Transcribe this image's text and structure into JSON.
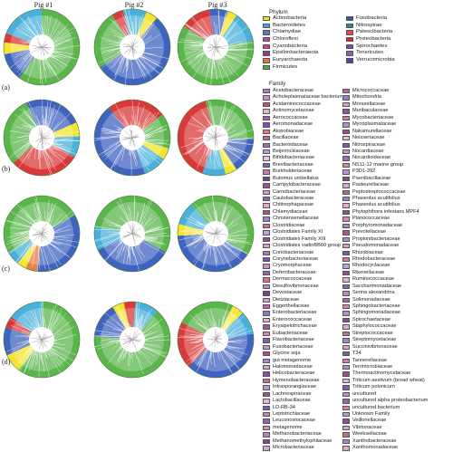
{
  "columns": [
    "Pig #1",
    "Pig #2",
    "Pig #3"
  ],
  "rows": [
    "(a)",
    "(b)",
    "(c)",
    "(d)"
  ],
  "phylum": {
    "title": "Phylum",
    "items": [
      {
        "label": "Actinobacteria",
        "color": "#f2e21c"
      },
      {
        "label": "Bacteroidetes",
        "color": "#3aa9d8"
      },
      {
        "label": "Chlamydiae",
        "color": "#6a6fc2"
      },
      {
        "label": "Chloroflexi",
        "color": "#b24aa8"
      },
      {
        "label": "Cyanobacteria",
        "color": "#d63b8f"
      },
      {
        "label": "Epsilonbacteraeota",
        "color": "#8a3b9c"
      },
      {
        "label": "Euryarchaeota",
        "color": "#e3733a"
      },
      {
        "label": "Firmicutes",
        "color": "#4caf3c"
      },
      {
        "label": "Fusobacteria",
        "color": "#2f56b8"
      },
      {
        "label": "Nitrospirae",
        "color": "#2c8a8a"
      },
      {
        "label": "Patescibacteria",
        "color": "#e24a4a"
      },
      {
        "label": "Proteobacteria",
        "color": "#d62828"
      },
      {
        "label": "Spirochaetes",
        "color": "#7a4bb5"
      },
      {
        "label": "Tenericutes",
        "color": "#9b59b6"
      },
      {
        "label": "Verrucomicrobia",
        "color": "#5b3fa8"
      }
    ]
  },
  "family": {
    "title": "Family",
    "col1": [
      {
        "label": "Acetobacteraceae",
        "color": "#b67bc7"
      },
      {
        "label": "Acholeplasmataceae bacterium",
        "color": "#d98ad6"
      },
      {
        "label": "Acidaminococcaceae",
        "color": "#c94f7c"
      },
      {
        "label": "Actinomycetaceae",
        "color": "#e8b8d8"
      },
      {
        "label": "Aerococcaceae",
        "color": "#a55fb8"
      },
      {
        "label": "Aeromonadaceae",
        "color": "#7e4fb5"
      },
      {
        "label": "Atopobiaceae",
        "color": "#e07a9b"
      },
      {
        "label": "Bacillaceae",
        "color": "#cf5f88"
      },
      {
        "label": "Bacteroidaceae",
        "color": "#9d6fc4"
      },
      {
        "label": "Beijerinckiaceae",
        "color": "#b8a0da"
      },
      {
        "label": "Bifidobacteriaceae",
        "color": "#f0c2e0"
      },
      {
        "label": "Brevibacteriaceae",
        "color": "#8b5db8"
      },
      {
        "label": "Burkholderiaceae",
        "color": "#c978b9"
      },
      {
        "label": "Butomus umbellatus",
        "color": "#6c3fa0"
      },
      {
        "label": "Campylobacteraceae",
        "color": "#a14d9e"
      },
      {
        "label": "Carnobacteriaceae",
        "color": "#dc9ac9"
      },
      {
        "label": "Caulobacteraceae",
        "color": "#7f66c2"
      },
      {
        "label": "Chitinophagaceae",
        "color": "#e4a6c0"
      },
      {
        "label": "Chlamydiaceae",
        "color": "#b14f94"
      },
      {
        "label": "Christensenellaceae",
        "color": "#9a82d0"
      },
      {
        "label": "Clostridiaceae",
        "color": "#d56aa7"
      },
      {
        "label": "Clostridiales Family XI",
        "color": "#c5a3e0"
      },
      {
        "label": "Clostridiales Family XIII",
        "color": "#8c4f9f"
      },
      {
        "label": "Clostridiales vadinBB60 group",
        "color": "#e89cc0"
      },
      {
        "label": "Coriobacteriaceae",
        "color": "#a873c5"
      },
      {
        "label": "Corynebacteriaceae",
        "color": "#6e57b0"
      },
      {
        "label": "Cryomorphaceae",
        "color": "#cf8fbf"
      },
      {
        "label": "Deferribacteraceae",
        "color": "#9466b5"
      },
      {
        "label": "Dermacoccaceae",
        "color": "#e26e8e"
      },
      {
        "label": "Desulfovibrionaceae",
        "color": "#b988d2"
      },
      {
        "label": "Devosiaceae",
        "color": "#7d3f93"
      },
      {
        "label": "Dietziaceae",
        "color": "#d4a0da"
      },
      {
        "label": "Eggerthellaceae",
        "color": "#c4639e"
      },
      {
        "label": "Enterobacteriaceae",
        "color": "#8f77c9"
      },
      {
        "label": "Enterococcaceae",
        "color": "#eab0cf"
      },
      {
        "label": "Erysipelotrichaceae",
        "color": "#a356a8"
      },
      {
        "label": "Eubacteriaceae",
        "color": "#dd84b2"
      },
      {
        "label": "Flavobacteriaceae",
        "color": "#7b5bbb"
      },
      {
        "label": "Fusobacteriaceae",
        "color": "#c99ad8"
      },
      {
        "label": "Glycine soja",
        "color": "#b5467f"
      },
      {
        "label": "gut metagenome",
        "color": "#9c8ad6"
      },
      {
        "label": "Halomonadaceae",
        "color": "#e3a0c6"
      },
      {
        "label": "Helicobacteraceae",
        "color": "#8a4aa6"
      },
      {
        "label": "Hymenobacteraceae",
        "color": "#d26b97"
      },
      {
        "label": "Intrasporangiaceae",
        "color": "#b299dc"
      },
      {
        "label": "Lachnospiraceae",
        "color": "#a04f8f"
      },
      {
        "label": "Lactobacillaceae",
        "color": "#e7bade"
      },
      {
        "label": "LD-RB-34",
        "color": "#7461b7"
      },
      {
        "label": "Leptotrichiaceae",
        "color": "#cc7fb8"
      },
      {
        "label": "Leuconostocaceae",
        "color": "#9b5dbd"
      },
      {
        "label": "metagenome",
        "color": "#e08aae"
      },
      {
        "label": "Methanobacteriaceae",
        "color": "#b37fcc"
      },
      {
        "label": "Methanomethylophilaceae",
        "color": "#81479e"
      },
      {
        "label": "Microbacteriaceae",
        "color": "#d9a8d2"
      }
    ],
    "col2": [
      {
        "label": "Micrococcaceae",
        "color": "#c2649d"
      },
      {
        "label": "Mitochondria",
        "color": "#9a7bcc"
      },
      {
        "label": "Moraxellaceae",
        "color": "#e4a2c8"
      },
      {
        "label": "Muribaculaceae",
        "color": "#8a52a8"
      },
      {
        "label": "Mycobacteriaceae",
        "color": "#d47aa8"
      },
      {
        "label": "Mycoplasmataceae",
        "color": "#ad8fd6"
      },
      {
        "label": "Nakamurellaceae",
        "color": "#a3498f"
      },
      {
        "label": "Neisseriaceae",
        "color": "#ebb9d9"
      },
      {
        "label": "Nitrospiraceae",
        "color": "#7a5ab8"
      },
      {
        "label": "Nocardiaceae",
        "color": "#cd8ec2"
      },
      {
        "label": "Nocardioidaceae",
        "color": "#9e68bf"
      },
      {
        "label": "NS11-12 marine group",
        "color": "#df7fa7"
      },
      {
        "label": "P3D1-392",
        "color": "#b794d8"
      },
      {
        "label": "Paenibacillaceae",
        "color": "#84489b"
      },
      {
        "label": "Pasteurellaceae",
        "color": "#daa6d4"
      },
      {
        "label": "Peptostreptococcaceae",
        "color": "#c55f96"
      },
      {
        "label": "Phaseolus acutifolius",
        "color": "#9480cf"
      },
      {
        "label": "Phaseolus acutifolius",
        "color": "#e6abcc"
      },
      {
        "label": "Phytophthora infestans MPF4",
        "color": "#8e4fa3"
      },
      {
        "label": "Planococcaceae",
        "color": "#d584b5"
      },
      {
        "label": "Porphyromonadaceae",
        "color": "#a985d0"
      },
      {
        "label": "Prevotellaceae",
        "color": "#b2508b"
      },
      {
        "label": "Propionibacteriaceae",
        "color": "#9f91d8"
      },
      {
        "label": "Pseudomonadaceae",
        "color": "#e39fc2"
      },
      {
        "label": "Rhizobiaceae",
        "color": "#7f52ad"
      },
      {
        "label": "Rhodobacteraceae",
        "color": "#cf77ab"
      },
      {
        "label": "Rhodocyclaceae",
        "color": "#bb9cdc"
      },
      {
        "label": "Rikenellaceae",
        "color": "#984a99"
      },
      {
        "label": "Ruminococcaceae",
        "color": "#e8b3d3"
      },
      {
        "label": "Saccharimonadaceae",
        "color": "#7868bb"
      },
      {
        "label": "Senna alexandrina",
        "color": "#ca86bd"
      },
      {
        "label": "Solimonadaceae",
        "color": "#a263bb"
      },
      {
        "label": "Sphingobacteriaceae",
        "color": "#dc86ae"
      },
      {
        "label": "Sphingomonadaceae",
        "color": "#b58bd3"
      },
      {
        "label": "Spirochaetaceae",
        "color": "#874b9f"
      },
      {
        "label": "Staphylococcaceae",
        "color": "#dfaad4"
      },
      {
        "label": "Streptococcaceae",
        "color": "#c66b9c"
      },
      {
        "label": "Streptomycetaceae",
        "color": "#9d86d3"
      },
      {
        "label": "Succinivibrionaceae",
        "color": "#e6a5c6"
      },
      {
        "label": "T34",
        "color": "#8c55a9"
      },
      {
        "label": "Tannerellaceae",
        "color": "#d07fb1"
      },
      {
        "label": "Terrimicrobiaceae",
        "color": "#ae91d6"
      },
      {
        "label": "Thermoactinomycetaceae",
        "color": "#a54c91"
      },
      {
        "label": "Triticum aestivum (bread wheat)",
        "color": "#eab6d6"
      },
      {
        "label": "Triticum polonicum",
        "color": "#7d60b8"
      },
      {
        "label": "uncultured",
        "color": "#cb8ac0"
      },
      {
        "label": "uncultured alpha proteobacterium",
        "color": "#9b62bb"
      },
      {
        "label": "uncultured bacterium",
        "color": "#de84ab"
      },
      {
        "label": "Unknown Family",
        "color": "#b698d9"
      },
      {
        "label": "Veillonellaceae",
        "color": "#8d4b9e"
      },
      {
        "label": "Vibrionaceae",
        "color": "#d9a3d1"
      },
      {
        "label": "Weeksellaceae",
        "color": "#c46799"
      },
      {
        "label": "Xanthobacteraceae",
        "color": "#a08ad4"
      },
      {
        "label": "Xanthomonadaceae",
        "color": "#e4a8ca"
      }
    ]
  },
  "trees": [
    {
      "id": "a1",
      "row": 0,
      "col": 0,
      "sectors": [
        {
          "color": "#4caf3c",
          "frac": 0.6
        },
        {
          "color": "#2f56b8",
          "frac": 0.12
        },
        {
          "color": "#f2e21c",
          "frac": 0.05
        },
        {
          "color": "#d62828",
          "frac": 0.04
        },
        {
          "color": "#3aa9d8",
          "frac": 0.19
        }
      ]
    },
    {
      "id": "a2",
      "row": 0,
      "col": 1,
      "sectors": [
        {
          "color": "#2f56b8",
          "frac": 0.55
        },
        {
          "color": "#4caf3c",
          "frac": 0.25
        },
        {
          "color": "#d62828",
          "frac": 0.05
        },
        {
          "color": "#3aa9d8",
          "frac": 0.1
        },
        {
          "color": "#f2e21c",
          "frac": 0.05
        }
      ]
    },
    {
      "id": "a3",
      "row": 0,
      "col": 2,
      "sectors": [
        {
          "color": "#4caf3c",
          "frac": 0.62
        },
        {
          "color": "#d62828",
          "frac": 0.13
        },
        {
          "color": "#2f56b8",
          "frac": 0.08
        },
        {
          "color": "#f2e21c",
          "frac": 0.04
        },
        {
          "color": "#3aa9d8",
          "frac": 0.13
        }
      ]
    },
    {
      "id": "b1",
      "row": 1,
      "col": 0,
      "sectors": [
        {
          "color": "#d62828",
          "frac": 0.3
        },
        {
          "color": "#4caf3c",
          "frac": 0.3
        },
        {
          "color": "#2f56b8",
          "frac": 0.25
        },
        {
          "color": "#f2e21c",
          "frac": 0.06
        },
        {
          "color": "#3aa9d8",
          "frac": 0.09
        }
      ]
    },
    {
      "id": "b2",
      "row": 1,
      "col": 1,
      "sectors": [
        {
          "color": "#2f56b8",
          "frac": 0.45
        },
        {
          "color": "#d62828",
          "frac": 0.25
        },
        {
          "color": "#4caf3c",
          "frac": 0.15
        },
        {
          "color": "#f2e21c",
          "frac": 0.05
        },
        {
          "color": "#3aa9d8",
          "frac": 0.1
        }
      ]
    },
    {
      "id": "b3",
      "row": 1,
      "col": 2,
      "sectors": [
        {
          "color": "#d62828",
          "frac": 0.4
        },
        {
          "color": "#4caf3c",
          "frac": 0.3
        },
        {
          "color": "#2f56b8",
          "frac": 0.15
        },
        {
          "color": "#f2e21c",
          "frac": 0.05
        },
        {
          "color": "#3aa9d8",
          "frac": 0.1
        }
      ]
    },
    {
      "id": "c1",
      "row": 2,
      "col": 0,
      "sectors": [
        {
          "color": "#4caf3c",
          "frac": 0.5
        },
        {
          "color": "#2f56b8",
          "frac": 0.35
        },
        {
          "color": "#e3733a",
          "frac": 0.05
        },
        {
          "color": "#f2e21c",
          "frac": 0.04
        },
        {
          "color": "#3aa9d8",
          "frac": 0.06
        }
      ]
    },
    {
      "id": "c2",
      "row": 2,
      "col": 1,
      "sectors": [
        {
          "color": "#4caf3c",
          "frac": 0.55
        },
        {
          "color": "#2f56b8",
          "frac": 0.35
        },
        {
          "color": "#3aa9d8",
          "frac": 0.1
        }
      ]
    },
    {
      "id": "c3",
      "row": 2,
      "col": 2,
      "sectors": [
        {
          "color": "#4caf3c",
          "frac": 0.45
        },
        {
          "color": "#2f56b8",
          "frac": 0.4
        },
        {
          "color": "#f2e21c",
          "frac": 0.05
        },
        {
          "color": "#3aa9d8",
          "frac": 0.1
        }
      ]
    },
    {
      "id": "d1",
      "row": 3,
      "col": 0,
      "sectors": [
        {
          "color": "#4caf3c",
          "frac": 0.6
        },
        {
          "color": "#f2e21c",
          "frac": 0.08
        },
        {
          "color": "#2f56b8",
          "frac": 0.12
        },
        {
          "color": "#d62828",
          "frac": 0.05
        },
        {
          "color": "#3aa9d8",
          "frac": 0.15
        }
      ]
    },
    {
      "id": "d2",
      "row": 3,
      "col": 1,
      "sectors": [
        {
          "color": "#4caf3c",
          "frac": 0.65
        },
        {
          "color": "#2f56b8",
          "frac": 0.15
        },
        {
          "color": "#f2e21c",
          "frac": 0.05
        },
        {
          "color": "#d62828",
          "frac": 0.05
        },
        {
          "color": "#3aa9d8",
          "frac": 0.1
        }
      ]
    },
    {
      "id": "d3",
      "row": 3,
      "col": 2,
      "sectors": [
        {
          "color": "#2f56b8",
          "frac": 0.4
        },
        {
          "color": "#d62828",
          "frac": 0.2
        },
        {
          "color": "#4caf3c",
          "frac": 0.25
        },
        {
          "color": "#f2e21c",
          "frac": 0.05
        },
        {
          "color": "#3aa9d8",
          "frac": 0.1
        }
      ]
    }
  ]
}
